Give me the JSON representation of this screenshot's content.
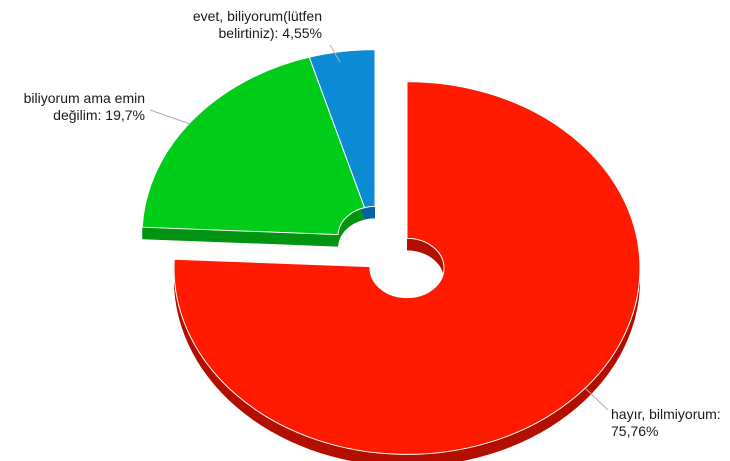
{
  "chart_data": {
    "type": "pie",
    "style": "exploded 3D donut",
    "slices": [
      {
        "label_lines": [
          "hayır, bilmiyorum:",
          "75,76%"
        ],
        "value": 75.76,
        "color": "#ff1a00",
        "side": "#b30f00"
      },
      {
        "label_lines": [
          "biliyorum ama emin",
          "değilim: 19,7%"
        ],
        "value": 19.7,
        "color": "#00cc1a",
        "side": "#009412"
      },
      {
        "label_lines": [
          "evet, biliyorum(lütfen",
          "belirtiniz): 4,55%"
        ],
        "value": 4.55,
        "color": "#0b8bd4",
        "side": "#06649c"
      }
    ]
  }
}
